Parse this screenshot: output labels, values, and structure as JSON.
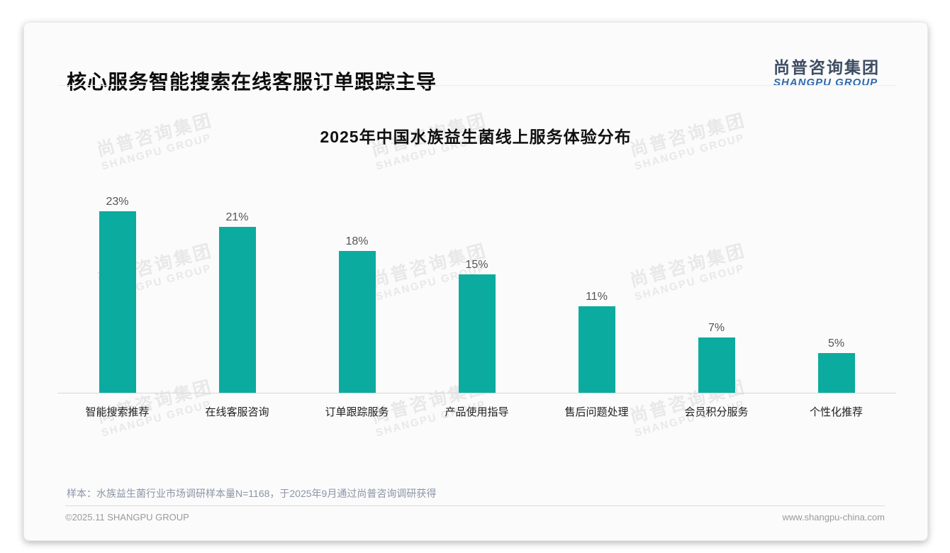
{
  "page": {
    "title": "核心服务智能搜索在线客服订单跟踪主导",
    "logo": {
      "cn": "尚普咨询集团",
      "en": "SHANGPU GROUP"
    },
    "watermark": {
      "cn": "尚普咨询集团",
      "en": "SHANGPU GROUP"
    },
    "footer": {
      "note": "样本：水族益生菌行业市场调研样本量N=1168，于2025年9月通过尚普咨询调研获得",
      "copyright": "©2025.11 SHANGPU GROUP",
      "website": "www.shangpu-china.com"
    }
  },
  "chart_data": {
    "type": "bar",
    "title": "2025年中国水族益生菌线上服务体验分布",
    "categories": [
      "智能搜索推荐",
      "在线客服咨询",
      "订单跟踪服务",
      "产品使用指导",
      "售后问题处理",
      "会员积分服务",
      "个性化推荐"
    ],
    "values": [
      23,
      21,
      18,
      15,
      11,
      7,
      5
    ],
    "value_labels": [
      "23%",
      "21%",
      "18%",
      "15%",
      "11%",
      "7%",
      "5%"
    ],
    "unit": "%",
    "bar_color": "#0cab9f",
    "ylim": [
      0,
      25
    ],
    "grid": false,
    "legend": "none",
    "xlabel": "",
    "ylabel": ""
  }
}
